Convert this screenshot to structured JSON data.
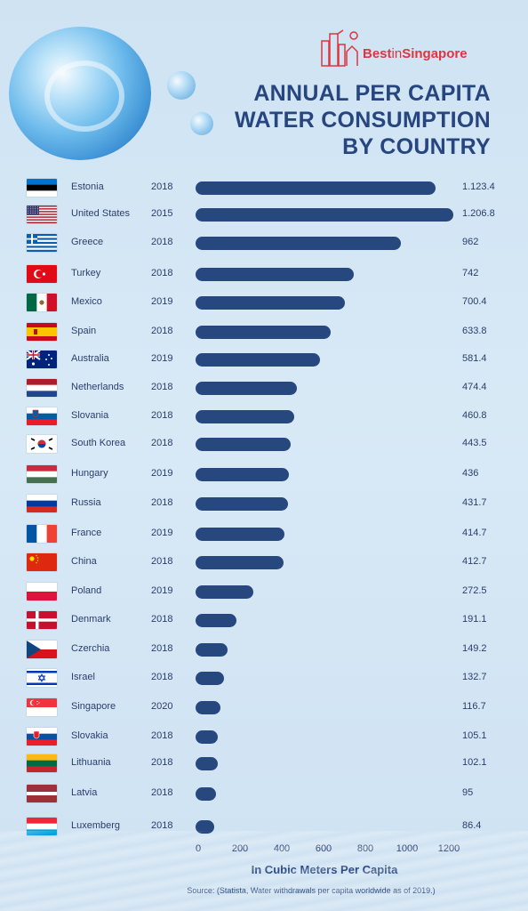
{
  "brand": {
    "name_bold": "Best",
    "name_mid": "in",
    "name_rest": "Singapore"
  },
  "title": {
    "line1": "ANNUAL PER CAPITA",
    "line2": "WATER CONSUMPTION",
    "line3": "BY COUNTRY"
  },
  "chart_data": {
    "type": "bar",
    "orientation": "horizontal",
    "title": "ANNUAL PER CAPITA WATER CONSUMPTION BY COUNTRY",
    "xlabel": "In Cubic Meters Per Capita",
    "xlim": [
      0,
      1300
    ],
    "xticks": [
      "0",
      "200",
      "400",
      "600",
      "800",
      "1000",
      "1200"
    ],
    "rows": [
      {
        "country": "Estonia",
        "year": "2018",
        "label": "1.123.4",
        "value": 1123.4,
        "flag": "estonia"
      },
      {
        "country": "United States",
        "year": "2015",
        "label": "1.206.8",
        "value": 1206.8,
        "flag": "united-states"
      },
      {
        "country": "Greece",
        "year": "2018",
        "label": "962",
        "value": 962,
        "flag": "greece"
      },
      {
        "country": "Turkey",
        "year": "2018",
        "label": "742",
        "value": 742,
        "flag": "turkey"
      },
      {
        "country": "Mexico",
        "year": "2019",
        "label": "700.4",
        "value": 700.4,
        "flag": "mexico"
      },
      {
        "country": "Spain",
        "year": "2018",
        "label": "633.8",
        "value": 633.8,
        "flag": "spain"
      },
      {
        "country": "Australia",
        "year": "2019",
        "label": "581.4",
        "value": 581.4,
        "flag": "australia"
      },
      {
        "country": "Netherlands",
        "year": "2018",
        "label": "474.4",
        "value": 474.4,
        "flag": "netherlands"
      },
      {
        "country": "Slovania",
        "year": "2018",
        "label": "460.8",
        "value": 460.8,
        "flag": "slovenia"
      },
      {
        "country": "South Korea",
        "year": "2018",
        "label": "443.5",
        "value": 443.5,
        "flag": "south-korea"
      },
      {
        "country": "Hungary",
        "year": "2019",
        "label": "436",
        "value": 436,
        "flag": "hungary"
      },
      {
        "country": "Russia",
        "year": "2018",
        "label": "431.7",
        "value": 431.7,
        "flag": "russia"
      },
      {
        "country": "France",
        "year": "2019",
        "label": "414.7",
        "value": 414.7,
        "flag": "france"
      },
      {
        "country": "China",
        "year": "2018",
        "label": "412.7",
        "value": 412.7,
        "flag": "china"
      },
      {
        "country": "Poland",
        "year": "2019",
        "label": "272.5",
        "value": 272.5,
        "flag": "poland"
      },
      {
        "country": "Denmark",
        "year": "2018",
        "label": "191.1",
        "value": 191.1,
        "flag": "denmark"
      },
      {
        "country": "Czerchia",
        "year": "2018",
        "label": "149.2",
        "value": 149.2,
        "flag": "czechia"
      },
      {
        "country": "Israel",
        "year": "2018",
        "label": "132.7",
        "value": 132.7,
        "flag": "israel"
      },
      {
        "country": "Singapore",
        "year": "2020",
        "label": "116.7",
        "value": 116.7,
        "flag": "singapore"
      },
      {
        "country": "Slovakia",
        "year": "2018",
        "label": "105.1",
        "value": 105.1,
        "flag": "slovakia"
      },
      {
        "country": "Lithuania",
        "year": "2018",
        "label": "102.1",
        "value": 102.1,
        "flag": "lithuania"
      },
      {
        "country": "Latvia",
        "year": "2018",
        "label": "95",
        "value": 95,
        "flag": "latvia"
      },
      {
        "country": "Luxemberg",
        "year": "2018",
        "label": "86.4",
        "value": 86.4,
        "flag": "luxembourg"
      }
    ]
  },
  "source": "Source: (Statista, Water withdrawals per capita worldwide as of 2019.)",
  "colors": {
    "bar": "#27477f",
    "title": "#27467f",
    "brand": "#e2333f"
  }
}
